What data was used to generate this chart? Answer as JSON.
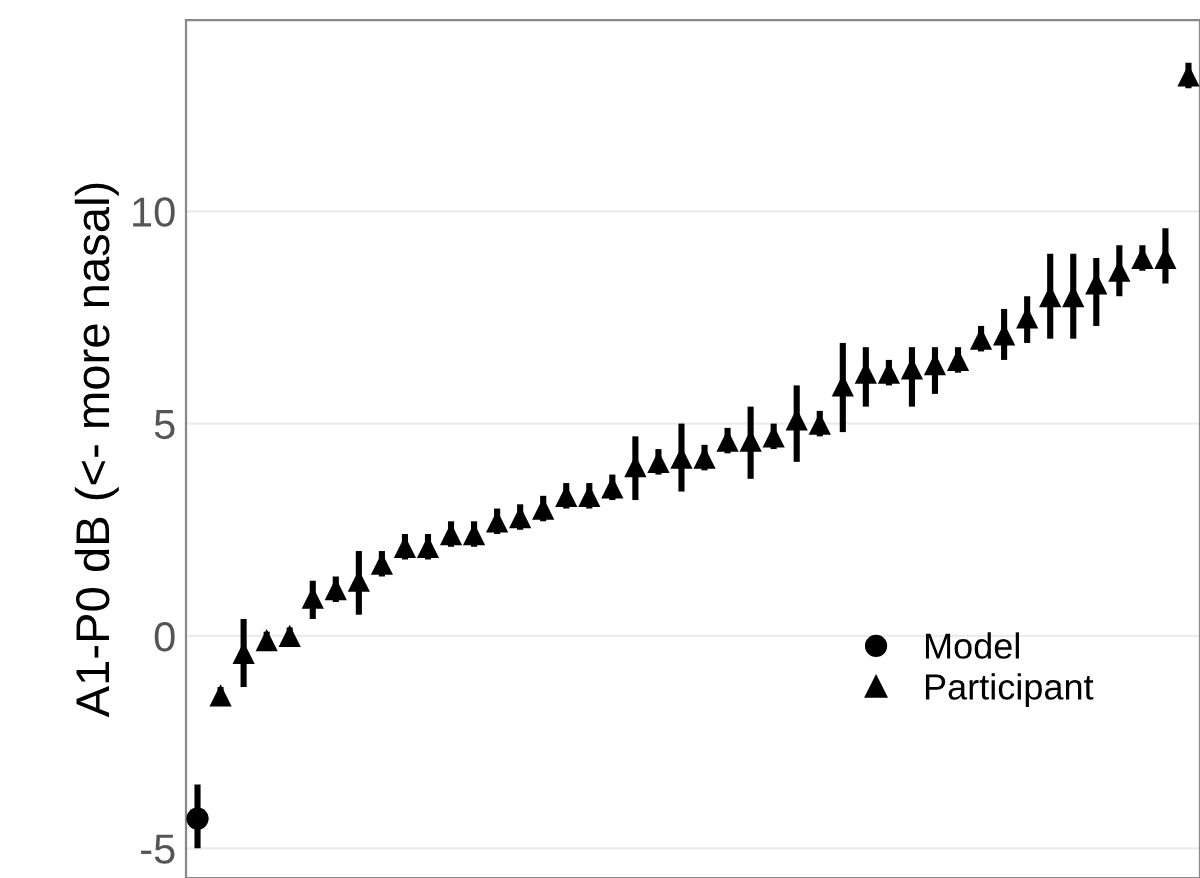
{
  "chart_data": {
    "type": "scatter",
    "ylabel": "A1-P0 dB (<- more nasal)",
    "categories": [
      null,
      null,
      null,
      null,
      null,
      null,
      null,
      null,
      null,
      null,
      null,
      null,
      null,
      null,
      null,
      null,
      null,
      null,
      null,
      null,
      null,
      null,
      null,
      null,
      null,
      null,
      null,
      null,
      null,
      null,
      null,
      null,
      null,
      null,
      null,
      null,
      null,
      null,
      null,
      null,
      null,
      null,
      null,
      null
    ],
    "series": [
      {
        "name": "Model",
        "color": "#000000",
        "marker": "circle",
        "values": [
          -4.3,
          null,
          null,
          null,
          null,
          null,
          null,
          null,
          null,
          null,
          null,
          null,
          null,
          null,
          null,
          null,
          null,
          null,
          null,
          null,
          null,
          null,
          null,
          null,
          null,
          null,
          null,
          null,
          null,
          null,
          null,
          null,
          null,
          null,
          null,
          null,
          null,
          null,
          null,
          null,
          null,
          null,
          null,
          null
        ],
        "errors": [
          [
            -5.0,
            -3.5
          ],
          null,
          null,
          null,
          null,
          null,
          null,
          null,
          null,
          null,
          null,
          null,
          null,
          null,
          null,
          null,
          null,
          null,
          null,
          null,
          null,
          null,
          null,
          null,
          null,
          null,
          null,
          null,
          null,
          null,
          null,
          null,
          null,
          null,
          null,
          null,
          null,
          null,
          null,
          null,
          null,
          null,
          null,
          null
        ]
      },
      {
        "name": "Participant",
        "color": "#000000",
        "marker": "triangle",
        "values": [
          null,
          -1.4,
          -0.4,
          -0.1,
          0.0,
          0.9,
          1.1,
          1.3,
          1.7,
          2.1,
          2.1,
          2.4,
          2.4,
          2.7,
          2.8,
          3.0,
          3.3,
          3.3,
          3.5,
          4.0,
          4.1,
          4.2,
          4.2,
          4.6,
          4.6,
          4.7,
          5.1,
          5.0,
          5.9,
          6.2,
          6.2,
          6.3,
          6.4,
          6.5,
          7.0,
          7.1,
          7.5,
          8.0,
          8.0,
          8.3,
          8.6,
          8.9,
          8.9,
          13.2
        ],
        "errors": [
          null,
          0.2,
          [
            -1.2,
            0.4
          ],
          0.2,
          0.2,
          [
            0.4,
            1.3
          ],
          0.3,
          [
            0.5,
            2.0
          ],
          0.3,
          0.3,
          0.3,
          0.3,
          0.3,
          0.3,
          0.3,
          0.3,
          0.3,
          0.3,
          0.3,
          [
            3.2,
            4.7
          ],
          0.3,
          [
            3.4,
            5.0
          ],
          0.3,
          0.3,
          [
            3.7,
            5.4
          ],
          0.3,
          [
            4.1,
            5.9
          ],
          0.3,
          [
            4.8,
            6.9
          ],
          [
            5.4,
            6.8
          ],
          0.3,
          [
            5.4,
            6.8
          ],
          [
            5.7,
            6.8
          ],
          0.3,
          0.3,
          [
            6.5,
            7.7
          ],
          [
            6.9,
            8.0
          ],
          [
            7.0,
            9.0
          ],
          [
            7.0,
            9.0
          ],
          [
            7.3,
            8.9
          ],
          [
            8.0,
            9.2
          ],
          0.3,
          [
            8.3,
            9.6
          ],
          0.3
        ]
      }
    ],
    "ylim": [
      -5.7,
      14.5
    ],
    "yticks": [
      -5,
      0,
      5,
      10
    ],
    "grid": "y",
    "legend": "bottom right",
    "tick_labels": "y"
  }
}
